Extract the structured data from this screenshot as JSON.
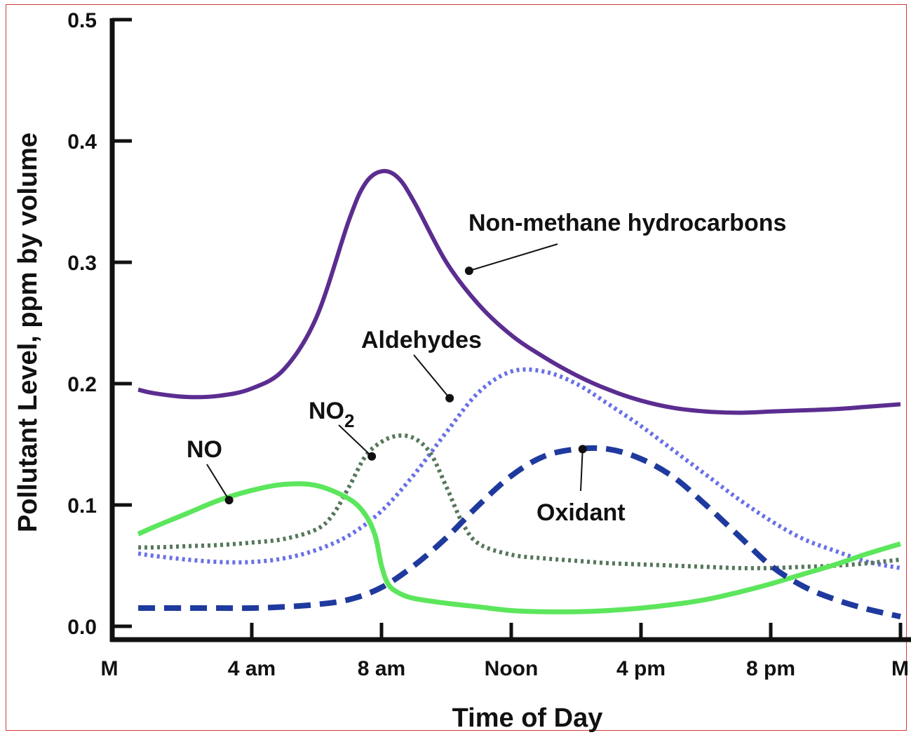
{
  "chart_data": {
    "type": "line",
    "title": "",
    "xlabel": "Time of Day",
    "ylabel": "Pollutant Level, ppm by volume",
    "xlim": [
      0,
      24
    ],
    "ylim": [
      0,
      0.5
    ],
    "grid": false,
    "x_ticks": [
      {
        "value": 0,
        "label": "M"
      },
      {
        "value": 4,
        "label": "4 am"
      },
      {
        "value": 8,
        "label": "8 am"
      },
      {
        "value": 12,
        "label": "Noon"
      },
      {
        "value": 16,
        "label": "4 pm"
      },
      {
        "value": 20,
        "label": "8 pm"
      },
      {
        "value": 24,
        "label": "M"
      }
    ],
    "y_ticks": [
      {
        "value": 0,
        "label": "0.0"
      },
      {
        "value": 0.1,
        "label": "0.1"
      },
      {
        "value": 0.2,
        "label": "0.2"
      },
      {
        "value": 0.3,
        "label": "0.3"
      },
      {
        "value": 0.4,
        "label": "0.4"
      },
      {
        "value": 0.5,
        "label": "0.5"
      }
    ],
    "series": [
      {
        "name": "Non-methane hydrocarbons",
        "color": "#5b2d90",
        "style": "solid",
        "x": [
          0.5,
          1,
          2,
          3,
          4,
          5,
          6,
          7,
          7.5,
          8,
          8.5,
          9,
          10,
          11,
          12,
          13,
          14,
          15,
          16,
          17,
          18,
          19,
          20,
          21,
          22,
          23,
          24
        ],
        "y": [
          0.195,
          0.192,
          0.189,
          0.19,
          0.196,
          0.212,
          0.255,
          0.335,
          0.365,
          0.375,
          0.37,
          0.35,
          0.3,
          0.265,
          0.24,
          0.222,
          0.207,
          0.195,
          0.186,
          0.18,
          0.177,
          0.176,
          0.177,
          0.178,
          0.179,
          0.181,
          0.183
        ]
      },
      {
        "name": "Aldehydes",
        "color": "#6870e6",
        "style": "dotted",
        "x": [
          0.5,
          1,
          2,
          3,
          4,
          5,
          6,
          7,
          8,
          9,
          10,
          11,
          12,
          13,
          14,
          15,
          16,
          17,
          18,
          19,
          20,
          21,
          22,
          23,
          24
        ],
        "y": [
          0.06,
          0.058,
          0.055,
          0.053,
          0.053,
          0.056,
          0.063,
          0.075,
          0.095,
          0.125,
          0.16,
          0.193,
          0.21,
          0.21,
          0.2,
          0.183,
          0.165,
          0.145,
          0.125,
          0.105,
          0.087,
          0.072,
          0.062,
          0.053,
          0.048
        ]
      },
      {
        "name": "NO2",
        "color": "#55775a",
        "style": "dotted",
        "x": [
          0.5,
          1,
          2,
          3,
          4,
          5,
          6,
          6.5,
          7,
          7.5,
          8,
          8.5,
          9,
          9.5,
          10,
          10.5,
          11,
          12,
          13,
          14,
          15,
          16,
          17,
          18,
          19,
          20,
          21,
          22,
          23,
          24
        ],
        "y": [
          0.065,
          0.065,
          0.066,
          0.067,
          0.069,
          0.072,
          0.08,
          0.092,
          0.115,
          0.14,
          0.152,
          0.157,
          0.155,
          0.143,
          0.115,
          0.085,
          0.068,
          0.059,
          0.056,
          0.054,
          0.052,
          0.051,
          0.05,
          0.049,
          0.048,
          0.048,
          0.049,
          0.05,
          0.052,
          0.055
        ]
      },
      {
        "name": "NO",
        "color": "#5ce65c",
        "style": "solid",
        "x": [
          0.5,
          1,
          2,
          3,
          4,
          5,
          6,
          7,
          7.5,
          7.8,
          8,
          8.2,
          8.5,
          9,
          10,
          11,
          12,
          13,
          14,
          15,
          16,
          17,
          18,
          19,
          20,
          21,
          22,
          23,
          24
        ],
        "y": [
          0.076,
          0.082,
          0.093,
          0.104,
          0.112,
          0.117,
          0.116,
          0.105,
          0.092,
          0.075,
          0.05,
          0.035,
          0.028,
          0.023,
          0.019,
          0.016,
          0.013,
          0.012,
          0.012,
          0.013,
          0.015,
          0.018,
          0.022,
          0.028,
          0.035,
          0.043,
          0.051,
          0.06,
          0.068
        ]
      },
      {
        "name": "Oxidant",
        "color": "#1f3a9e",
        "style": "dashed",
        "x": [
          0.5,
          1,
          2,
          3,
          4,
          5,
          6,
          7,
          8,
          9,
          10,
          11,
          12,
          13,
          14,
          15,
          16,
          17,
          18,
          19,
          20,
          21,
          22,
          23,
          24
        ],
        "y": [
          0.015,
          0.015,
          0.015,
          0.015,
          0.015,
          0.016,
          0.018,
          0.022,
          0.032,
          0.05,
          0.073,
          0.1,
          0.124,
          0.14,
          0.146,
          0.146,
          0.138,
          0.123,
          0.1,
          0.075,
          0.05,
          0.033,
          0.022,
          0.014,
          0.008
        ]
      }
    ],
    "annotations": [
      {
        "text": "Non-methane hydrocarbons",
        "series": "Non-methane hydrocarbons",
        "point": [
          10.7,
          0.293
        ]
      },
      {
        "text": "Aldehydes",
        "series": "Aldehydes",
        "point": [
          10.1,
          0.188
        ]
      },
      {
        "text": "NO",
        "sub": "2",
        "series": "NO2",
        "point": [
          7.7,
          0.14
        ]
      },
      {
        "text": "NO",
        "series": "NO",
        "point": [
          3.3,
          0.104
        ]
      },
      {
        "text": "Oxidant",
        "series": "Oxidant",
        "point": [
          14.2,
          0.146
        ]
      }
    ]
  }
}
